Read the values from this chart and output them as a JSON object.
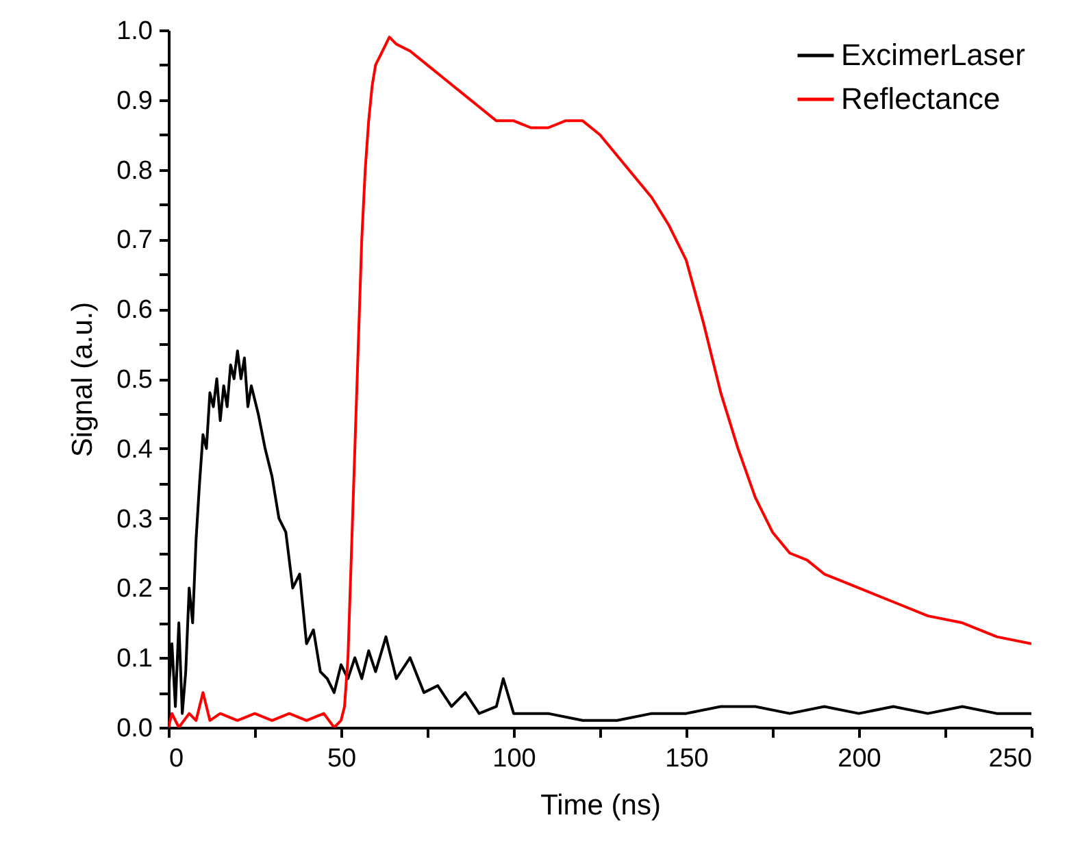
{
  "chart_data": {
    "type": "line",
    "xlabel": "Time (ns)",
    "ylabel": "Signal (a.u.)",
    "xlim": [
      0,
      250
    ],
    "ylim": [
      0,
      1.0
    ],
    "xticks": [
      0,
      {
        "value": 25,
        "label": null
      },
      50,
      {
        "value": 75,
        "label": null
      },
      100,
      {
        "value": 125,
        "label": null
      },
      150,
      {
        "value": 175,
        "label": null
      },
      200,
      {
        "value": 225,
        "label": null
      },
      250
    ],
    "yticks": [
      {
        "value": 0,
        "label": "0.0"
      },
      {
        "value": 0.05,
        "label": null
      },
      0.1,
      {
        "value": 0.15,
        "label": null
      },
      0.2,
      {
        "value": 0.25,
        "label": null
      },
      0.3,
      {
        "value": 0.35,
        "label": null
      },
      0.4,
      {
        "value": 0.45,
        "label": null
      },
      0.5,
      {
        "value": 0.55,
        "label": null
      },
      0.6,
      {
        "value": 0.65,
        "label": null
      },
      0.7,
      {
        "value": 0.75,
        "label": null
      },
      0.8,
      {
        "value": 0.85,
        "label": null
      },
      0.9,
      {
        "value": 0.95,
        "label": null
      },
      {
        "value": 1,
        "label": "1.0"
      }
    ],
    "legend": "top right",
    "grid": false,
    "line_style": "solid",
    "marker": "none",
    "series": [
      {
        "name": "ExcimerLaser",
        "color": "#000000",
        "x": [
          0,
          1,
          2,
          3,
          4,
          5,
          6,
          7,
          8,
          9,
          10,
          11,
          12,
          13,
          14,
          15,
          16,
          17,
          18,
          19,
          20,
          21,
          22,
          23,
          24,
          26,
          28,
          30,
          32,
          34,
          36,
          38,
          40,
          42,
          44,
          46,
          48,
          50,
          52,
          54,
          56,
          58,
          60,
          63,
          66,
          70,
          74,
          78,
          82,
          86,
          90,
          95,
          97,
          100,
          110,
          120,
          130,
          140,
          150,
          160,
          170,
          180,
          190,
          200,
          210,
          220,
          230,
          240,
          250
        ],
        "values": [
          0.05,
          0.12,
          0.03,
          0.15,
          0.02,
          0.08,
          0.2,
          0.15,
          0.27,
          0.35,
          0.42,
          0.4,
          0.48,
          0.46,
          0.5,
          0.44,
          0.49,
          0.46,
          0.52,
          0.5,
          0.54,
          0.5,
          0.53,
          0.46,
          0.49,
          0.45,
          0.4,
          0.36,
          0.3,
          0.28,
          0.2,
          0.22,
          0.12,
          0.14,
          0.08,
          0.07,
          0.05,
          0.09,
          0.07,
          0.1,
          0.07,
          0.11,
          0.08,
          0.13,
          0.07,
          0.1,
          0.05,
          0.06,
          0.03,
          0.05,
          0.02,
          0.03,
          0.07,
          0.02,
          0.02,
          0.01,
          0.01,
          0.02,
          0.02,
          0.03,
          0.03,
          0.02,
          0.03,
          0.02,
          0.03,
          0.02,
          0.03,
          0.02,
          0.02
        ]
      },
      {
        "name": "Reflectance",
        "color": "#ff0000",
        "x": [
          0,
          1,
          3,
          6,
          8,
          10,
          12,
          15,
          20,
          25,
          30,
          35,
          40,
          45,
          48,
          50,
          51,
          52,
          53,
          54,
          55,
          56,
          57,
          58,
          59,
          60,
          62,
          64,
          66,
          70,
          75,
          80,
          85,
          90,
          95,
          100,
          105,
          110,
          115,
          120,
          125,
          130,
          135,
          140,
          145,
          150,
          155,
          160,
          165,
          170,
          175,
          180,
          185,
          190,
          195,
          200,
          210,
          220,
          230,
          240,
          250
        ],
        "values": [
          0.0,
          0.02,
          0.0,
          0.02,
          0.01,
          0.05,
          0.01,
          0.02,
          0.01,
          0.02,
          0.01,
          0.02,
          0.01,
          0.02,
          0.0,
          0.01,
          0.03,
          0.1,
          0.25,
          0.4,
          0.55,
          0.7,
          0.8,
          0.87,
          0.92,
          0.95,
          0.97,
          0.99,
          0.98,
          0.97,
          0.95,
          0.93,
          0.91,
          0.89,
          0.87,
          0.87,
          0.86,
          0.86,
          0.87,
          0.87,
          0.85,
          0.82,
          0.79,
          0.76,
          0.72,
          0.67,
          0.58,
          0.48,
          0.4,
          0.33,
          0.28,
          0.25,
          0.24,
          0.22,
          0.21,
          0.2,
          0.18,
          0.16,
          0.15,
          0.13,
          0.12
        ]
      }
    ]
  }
}
